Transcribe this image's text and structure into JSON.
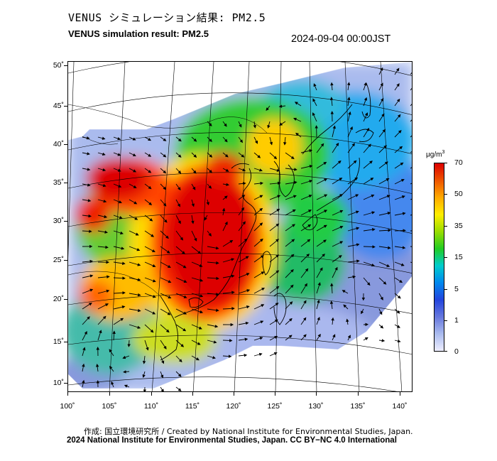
{
  "header": {
    "title_jp": "VENUS シミュレーション結果: PM2.5",
    "title_en": "VENUS simulation result: PM2.5",
    "timestamp": "2024-09-04 00:00JST"
  },
  "map": {
    "variable": "PM2.5",
    "lat_labels": [
      "50˚",
      "45˚",
      "40˚",
      "35˚",
      "30˚",
      "25˚",
      "20˚",
      "15˚",
      "10˚"
    ],
    "lon_labels": [
      "100˚",
      "105˚",
      "110˚",
      "115˚",
      "120˚",
      "125˚",
      "130˚",
      "135˚",
      "140˚"
    ],
    "colors": {
      "land_outline": "#000000",
      "graticule": "#000000",
      "wind_vector": "#000000"
    },
    "icons": [
      "wind-vector-arrow"
    ]
  },
  "colorbar": {
    "unit": "μg/m",
    "unit_sup": "3",
    "labels": [
      "70",
      "50",
      "35",
      "15",
      "5",
      "1",
      "0"
    ],
    "stops": [
      "#dd0000",
      "#ee5500",
      "#ffaa00",
      "#ffee00",
      "#99dd00",
      "#22cc22",
      "#00cccc",
      "#0088ee",
      "#2244dd",
      "#6677dd",
      "#aabbee",
      "#eeeeff"
    ]
  },
  "footer": {
    "credit": "作成: 国立環境研究所 / Created by National Institute for Environmental Studies, Japan.",
    "copyright": "2024 National Institute for Environmental Studies, Japan. CC BY−NC 4.0 International"
  }
}
